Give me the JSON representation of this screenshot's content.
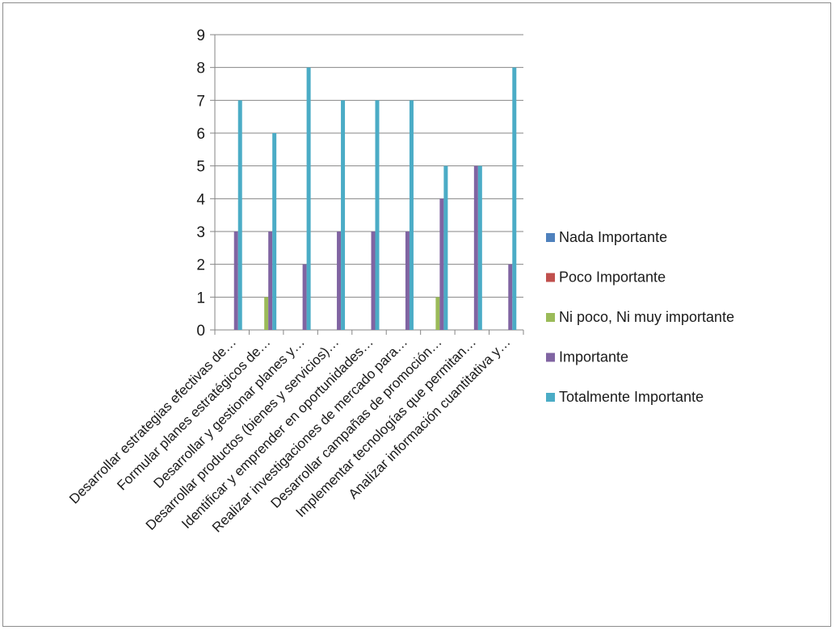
{
  "chart_data": {
    "type": "bar",
    "categories": [
      "Desarrollar estrategias efectivas de…",
      "Formular planes estratégicos de…",
      "Desarrollar y gestionar planes y…",
      "Desarrollar productos (bienes y servicios)…",
      "Identificar y emprender en oportunidades…",
      "Realizar investigaciones de mercado para…",
      "Desarrollar campañas de promoción…",
      "Implementar tecnologías que permitan…",
      "Analizar información cuantitativa y…"
    ],
    "series": [
      {
        "name": "Nada Importante",
        "color": "#4f81bd",
        "values": [
          0,
          0,
          0,
          0,
          0,
          0,
          0,
          0,
          0
        ]
      },
      {
        "name": "Poco  Importante",
        "color": "#c0504d",
        "values": [
          0,
          0,
          0,
          0,
          0,
          0,
          0,
          0,
          0
        ]
      },
      {
        "name": "Ni poco, Ni muy  importante",
        "color": "#9bbb59",
        "values": [
          0,
          1,
          0,
          0,
          0,
          0,
          1,
          0,
          0
        ]
      },
      {
        "name": "Importante",
        "color": "#8064a2",
        "values": [
          3,
          3,
          2,
          3,
          3,
          3,
          4,
          5,
          2
        ]
      },
      {
        "name": "Totalmente Importante",
        "color": "#4bacc6",
        "values": [
          7,
          6,
          8,
          7,
          7,
          7,
          5,
          5,
          8
        ]
      }
    ],
    "ylim": [
      0,
      9
    ],
    "yticks": [
      0,
      1,
      2,
      3,
      4,
      5,
      6,
      7,
      8,
      9
    ],
    "grid": true,
    "legend_position": "right"
  }
}
